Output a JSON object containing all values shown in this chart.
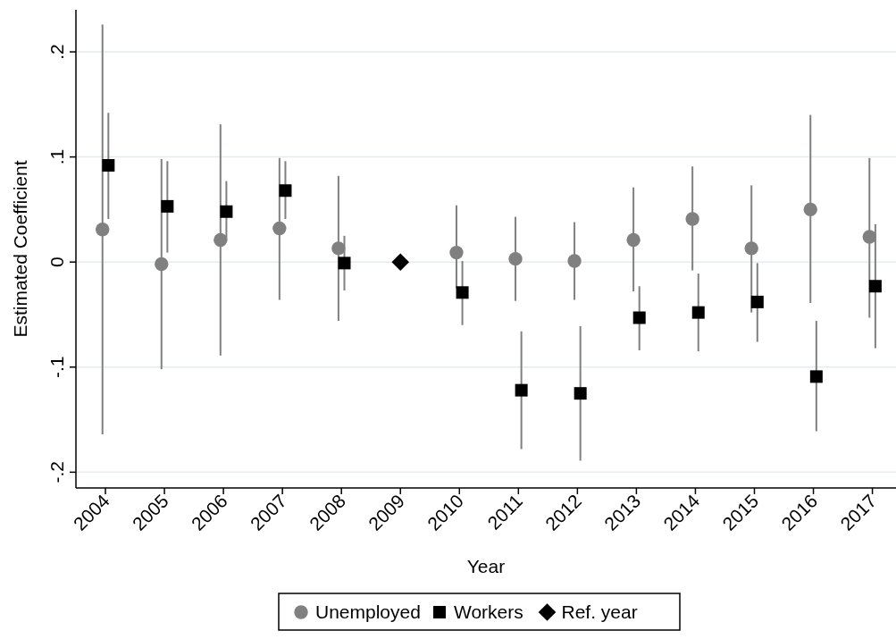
{
  "chart_data": {
    "type": "scatter",
    "xlabel": "Year",
    "ylabel": "Estimated Coefficient",
    "xlim": [
      2003.5,
      2017.4
    ],
    "xticks": [
      2004,
      2005,
      2006,
      2007,
      2008,
      2009,
      2010,
      2011,
      2012,
      2013,
      2014,
      2015,
      2016,
      2017
    ],
    "ylim": [
      -0.215,
      0.24
    ],
    "yticks": [
      {
        "value": -0.2,
        "label": "-.2"
      },
      {
        "value": -0.1,
        "label": "-.1"
      },
      0,
      {
        "value": 0.1,
        "label": ".1"
      },
      {
        "value": 0.2,
        "label": ".2"
      }
    ],
    "grid": "y",
    "legend": "bottom",
    "series": [
      {
        "name": "Unemployed",
        "color": "#808080",
        "marker": "circle",
        "x": [
          2003.95,
          2004.95,
          2005.95,
          2006.95,
          2007.95,
          2009.95,
          2010.95,
          2011.95,
          2012.95,
          2013.95,
          2014.95,
          2015.95,
          2016.95
        ],
        "values": [
          0.031,
          -0.002,
          0.021,
          0.032,
          0.013,
          0.009,
          0.003,
          0.001,
          0.021,
          0.041,
          0.013,
          0.05,
          0.024
        ],
        "errors": [
          [
            -0.164,
            0.226
          ],
          [
            -0.102,
            0.098
          ],
          [
            -0.089,
            0.131
          ],
          [
            -0.036,
            0.099
          ],
          [
            -0.056,
            0.082
          ],
          [
            -0.025,
            0.054
          ],
          [
            -0.037,
            0.043
          ],
          [
            -0.036,
            0.038
          ],
          [
            -0.028,
            0.071
          ],
          [
            -0.008,
            0.091
          ],
          [
            -0.048,
            0.073
          ],
          [
            -0.039,
            0.14
          ],
          [
            -0.053,
            0.099
          ]
        ]
      },
      {
        "name": "Workers",
        "color": "#000000",
        "marker": "square",
        "x": [
          2004.05,
          2005.05,
          2006.05,
          2007.05,
          2008.05,
          2010.05,
          2011.05,
          2012.05,
          2013.05,
          2014.05,
          2015.05,
          2016.05,
          2017.05
        ],
        "values": [
          0.092,
          0.053,
          0.048,
          0.068,
          -0.001,
          -0.029,
          -0.122,
          -0.125,
          -0.053,
          -0.048,
          -0.038,
          -0.109,
          -0.023
        ],
        "errors": [
          [
            0.041,
            0.142
          ],
          [
            0.009,
            0.096
          ],
          [
            0.02,
            0.077
          ],
          [
            0.041,
            0.096
          ],
          [
            -0.027,
            0.025
          ],
          [
            -0.06,
            0.001
          ],
          [
            -0.178,
            -0.066
          ],
          [
            -0.189,
            -0.061
          ],
          [
            -0.084,
            -0.023
          ],
          [
            -0.085,
            -0.011
          ],
          [
            -0.076,
            -0.001
          ],
          [
            -0.161,
            -0.056
          ],
          [
            -0.082,
            0.036
          ]
        ]
      },
      {
        "name": "Ref. year",
        "color": "#000000",
        "marker": "diamond",
        "x": [
          2009
        ],
        "values": [
          0
        ]
      }
    ]
  }
}
